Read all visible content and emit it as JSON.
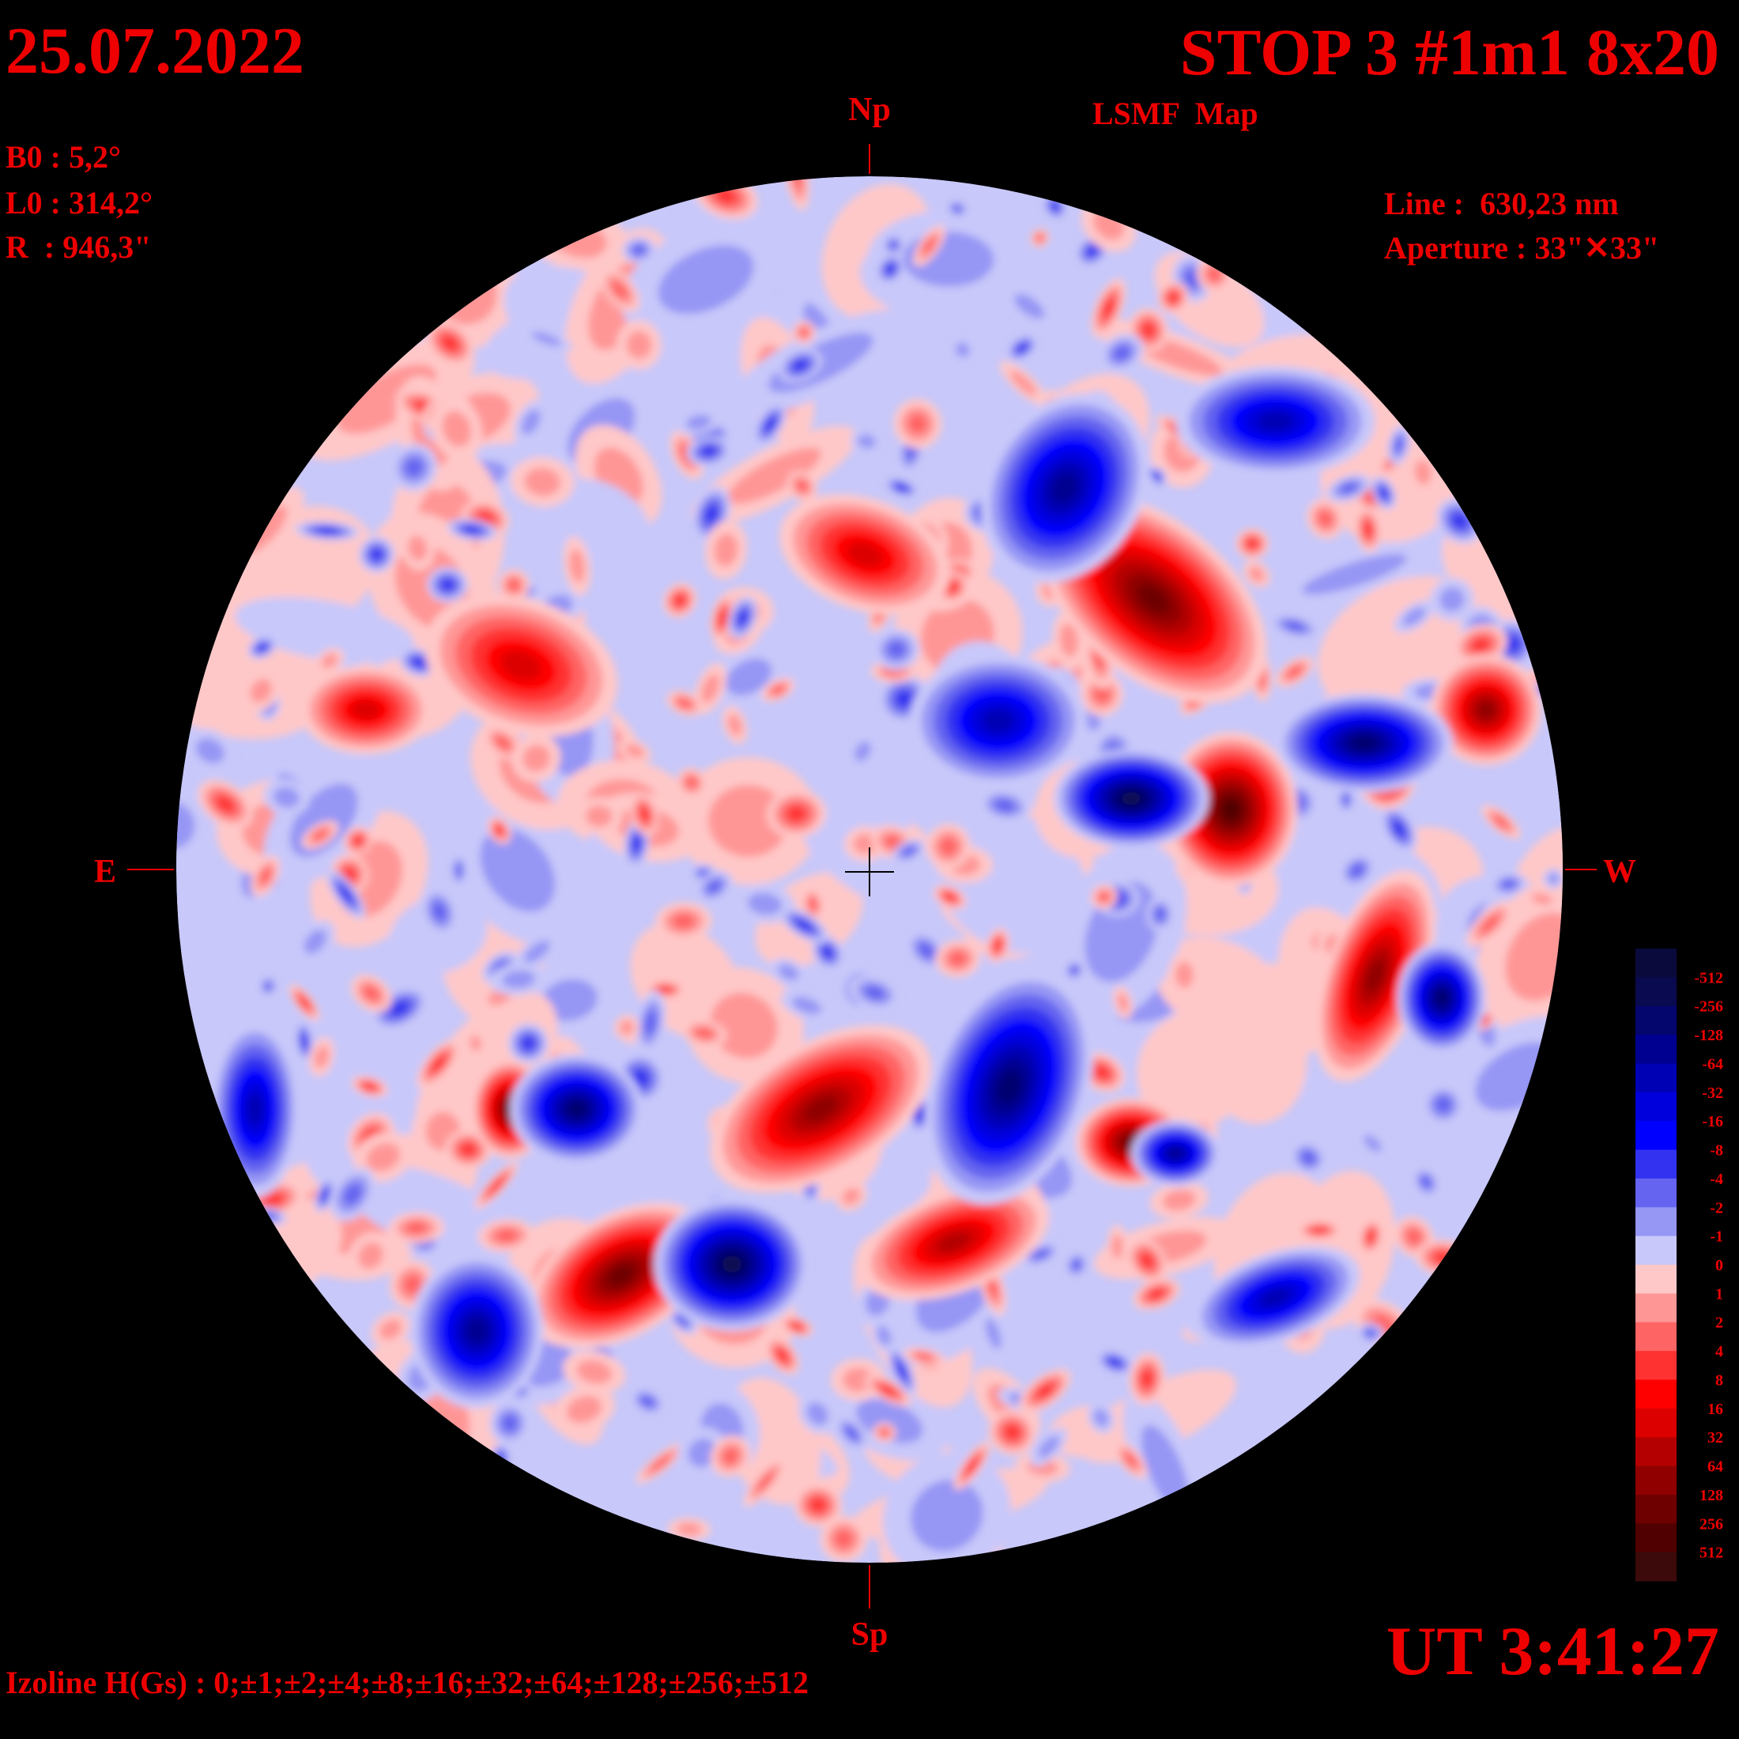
{
  "header": {
    "date": "25.07.2022",
    "title": "STOP 3 #1m1 8x20",
    "subtitle": "LSMF  Map",
    "time": "UT 3:41:27"
  },
  "parameters": {
    "b0": "B0 : 5,2°",
    "l0": "L0 : 314,2°",
    "r": "R  : 946,3\"",
    "line": "Line :  630,23 nm",
    "aperture": "Aperture : 33\"✕33\""
  },
  "compass": {
    "north": "Np",
    "south": "Sp",
    "east": "E",
    "west": "W"
  },
  "footer": {
    "izolines": "Izoline H(Gs) : 0;±1;±2;±4;±8;±16;±32;±64;±128;±256;±512"
  },
  "colorbar": {
    "labels": [
      "-512",
      "-256",
      "-128",
      "-64",
      "-32",
      "-16",
      "-8",
      "-4",
      "-2",
      "-1",
      "0",
      "1",
      "2",
      "4",
      "8",
      "16",
      "32",
      "64",
      "128",
      "256",
      "512"
    ],
    "colors": [
      "#0a0a3c",
      "#0a0a50",
      "#05056e",
      "#000090",
      "#0000b4",
      "#0000dc",
      "#0000ff",
      "#3232f0",
      "#6464f0",
      "#9696f5",
      "#c8c8fa",
      "#ffc8c8",
      "#ff9696",
      "#ff6464",
      "#ff3232",
      "#ff0000",
      "#dc0000",
      "#b40000",
      "#900000",
      "#6e0000",
      "#500000",
      "#3c0a0a"
    ]
  }
}
